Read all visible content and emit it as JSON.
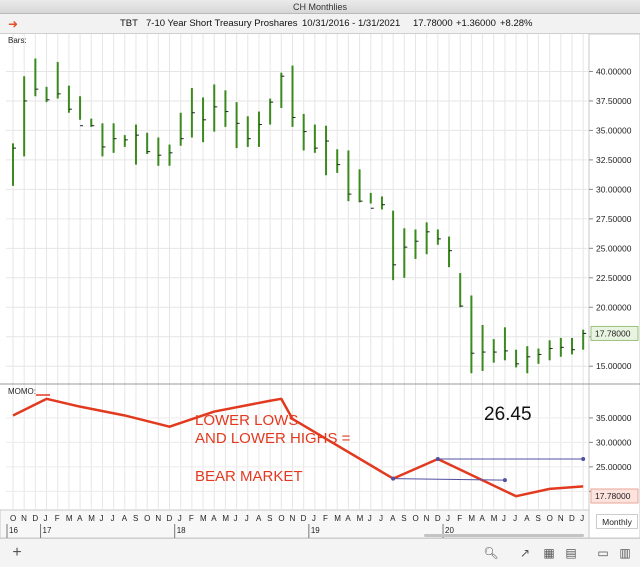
{
  "window": {
    "title": "CH Monthlies"
  },
  "header": {
    "arrow_icon": "red-right-arrow-icon",
    "symbol": "TBT",
    "description": "7-10 Year Short Treasury Proshares",
    "date_range": "10/31/2016 - 1/31/2021",
    "last": "17.78000",
    "change": "+1.36000",
    "percent": "+8.28%"
  },
  "panes": {
    "price_label": "Bars:",
    "momo_label": "MOMO:"
  },
  "interval_button": "Monthly",
  "toolbar": {
    "add_icon": "plus-icon",
    "icons": [
      "search-icon",
      "draw-line-icon",
      "grid-icon",
      "layout-icon",
      "book-icon",
      "panel-icon"
    ]
  },
  "colors": {
    "bar": "#3b8a1e",
    "momo": "#e23a1f",
    "trend": "#5050a0"
  },
  "chart_data": [
    {
      "type": "ohlc",
      "x": [
        "Oct 2016",
        "Nov 2016",
        "Dec 2016",
        "Jan 2017",
        "Feb 2017",
        "Mar 2017",
        "Apr 2017",
        "May 2017",
        "Jun 2017",
        "Jul 2017",
        "Aug 2017",
        "Sep 2017",
        "Oct 2017",
        "Nov 2017",
        "Dec 2017",
        "Jan 2018",
        "Feb 2018",
        "Mar 2018",
        "Apr 2018",
        "May 2018",
        "Jun 2018",
        "Jul 2018",
        "Aug 2018",
        "Sep 2018",
        "Oct 2018",
        "Nov 2018",
        "Dec 2018",
        "Jan 2019",
        "Feb 2019",
        "Mar 2019",
        "Apr 2019",
        "May 2019",
        "Jun 2019",
        "Jul 2019",
        "Aug 2019",
        "Sep 2019",
        "Oct 2019",
        "Nov 2019",
        "Dec 2019",
        "Jan 2020",
        "Feb 2020",
        "Mar 2020",
        "Apr 2020",
        "May 2020",
        "Jun 2020",
        "Jul 2020",
        "Aug 2020",
        "Sep 2020",
        "Oct 2020",
        "Nov 2020",
        "Dec 2020",
        "Jan 2021"
      ],
      "high": [
        33.9,
        39.6,
        41.1,
        38.7,
        40.8,
        38.8,
        37.9,
        36.0,
        35.6,
        35.6,
        34.6,
        35.5,
        34.8,
        34.4,
        33.8,
        36.5,
        38.6,
        37.8,
        38.9,
        38.4,
        37.4,
        36.2,
        36.6,
        37.7,
        39.9,
        40.5,
        36.4,
        35.5,
        35.4,
        33.4,
        33.3,
        31.7,
        29.7,
        29.4,
        28.2,
        26.7,
        26.6,
        27.2,
        26.6,
        26.0,
        22.9,
        21.0,
        18.5,
        17.3,
        18.3,
        16.4,
        16.7,
        16.5,
        17.2,
        17.4,
        17.4,
        18.1
      ],
      "low": [
        30.3,
        32.8,
        37.9,
        37.4,
        37.7,
        36.5,
        35.9,
        35.3,
        32.8,
        33.1,
        33.6,
        32.1,
        33.0,
        32.0,
        32.0,
        33.7,
        34.4,
        34.0,
        34.9,
        35.3,
        33.5,
        33.6,
        33.6,
        35.5,
        36.9,
        35.3,
        33.3,
        33.1,
        31.2,
        31.4,
        29.0,
        28.9,
        28.8,
        28.3,
        22.3,
        22.5,
        24.1,
        24.5,
        25.3,
        23.4,
        20.0,
        14.4,
        14.6,
        15.3,
        15.5,
        14.9,
        14.4,
        15.2,
        15.5,
        15.8,
        16.0,
        16.4
      ],
      "close": [
        33.5,
        37.5,
        38.5,
        37.6,
        38.1,
        36.8,
        35.4,
        35.4,
        33.6,
        34.3,
        34.2,
        34.6,
        33.2,
        32.9,
        33.1,
        34.3,
        36.5,
        35.9,
        37.0,
        36.6,
        35.6,
        34.3,
        35.5,
        37.4,
        39.6,
        36.1,
        34.9,
        33.5,
        34.1,
        32.1,
        29.6,
        29.0,
        28.4,
        28.7,
        23.6,
        25.1,
        25.6,
        26.4,
        25.8,
        24.8,
        20.1,
        16.1,
        16.2,
        16.2,
        16.3,
        15.2,
        15.8,
        16.0,
        16.5,
        16.6,
        16.4,
        17.78
      ],
      "ylim": [
        14.0,
        42.5
      ],
      "yticks": [
        "40.00000",
        "37.50000",
        "35.00000",
        "32.50000",
        "30.00000",
        "27.50000",
        "25.00000",
        "22.50000",
        "20.00000",
        "17.50000",
        "15.00000"
      ],
      "last_value_label": "17.78000"
    },
    {
      "type": "line",
      "name": "MOMO",
      "x": [
        "Oct 2016",
        "Jan 2017",
        "Apr 2017",
        "Aug 2017",
        "Dec 2017",
        "Apr 2018",
        "Sep 2018",
        "Oct 2018",
        "Nov 2018",
        "Aug 2019",
        "Dec 2019",
        "Jul 2020",
        "Oct 2020",
        "Jan 2021"
      ],
      "values": [
        35.5,
        38.9,
        37.3,
        35.5,
        33.2,
        36.3,
        38.5,
        38.9,
        34.8,
        22.6,
        26.6,
        19.0,
        20.5,
        21.0
      ],
      "ylim": [
        17.0,
        40.5
      ],
      "yticks": [
        "35.00000",
        "30.00000",
        "25.00000",
        "20.00000"
      ],
      "last_value_label": "17.78000",
      "annotations": {
        "text_lines": [
          "LOWER LOWS",
          "AND LOWER HIGHS =",
          "BEAR MARKET"
        ],
        "level_label": "26.45",
        "trend_lines": [
          {
            "from": [
              "Aug 2019",
              22.6
            ],
            "to": [
              "Jun 2020",
              22.3
            ]
          },
          {
            "from": [
              "Dec 2019",
              26.6
            ],
            "to": [
              "Jan 2021",
              26.6
            ]
          }
        ]
      }
    }
  ],
  "x_axis": {
    "month_letters": [
      "O",
      "N",
      "D",
      "J",
      "F",
      "M",
      "A",
      "M",
      "J",
      "J",
      "A",
      "S",
      "O",
      "N",
      "D",
      "J",
      "F",
      "M",
      "A",
      "M",
      "J",
      "J",
      "A",
      "S",
      "O",
      "N",
      "D",
      "J",
      "F",
      "M",
      "A",
      "M",
      "J",
      "J",
      "A",
      "S",
      "O",
      "N",
      "D",
      "J",
      "F",
      "M",
      "A",
      "M",
      "J",
      "J",
      "A",
      "S",
      "O",
      "N",
      "D",
      "J"
    ],
    "years": [
      {
        "label": "16",
        "index": 0
      },
      {
        "label": "17",
        "index": 3
      },
      {
        "label": "18",
        "index": 15
      },
      {
        "label": "19",
        "index": 27
      },
      {
        "label": "20",
        "index": 39
      }
    ]
  }
}
